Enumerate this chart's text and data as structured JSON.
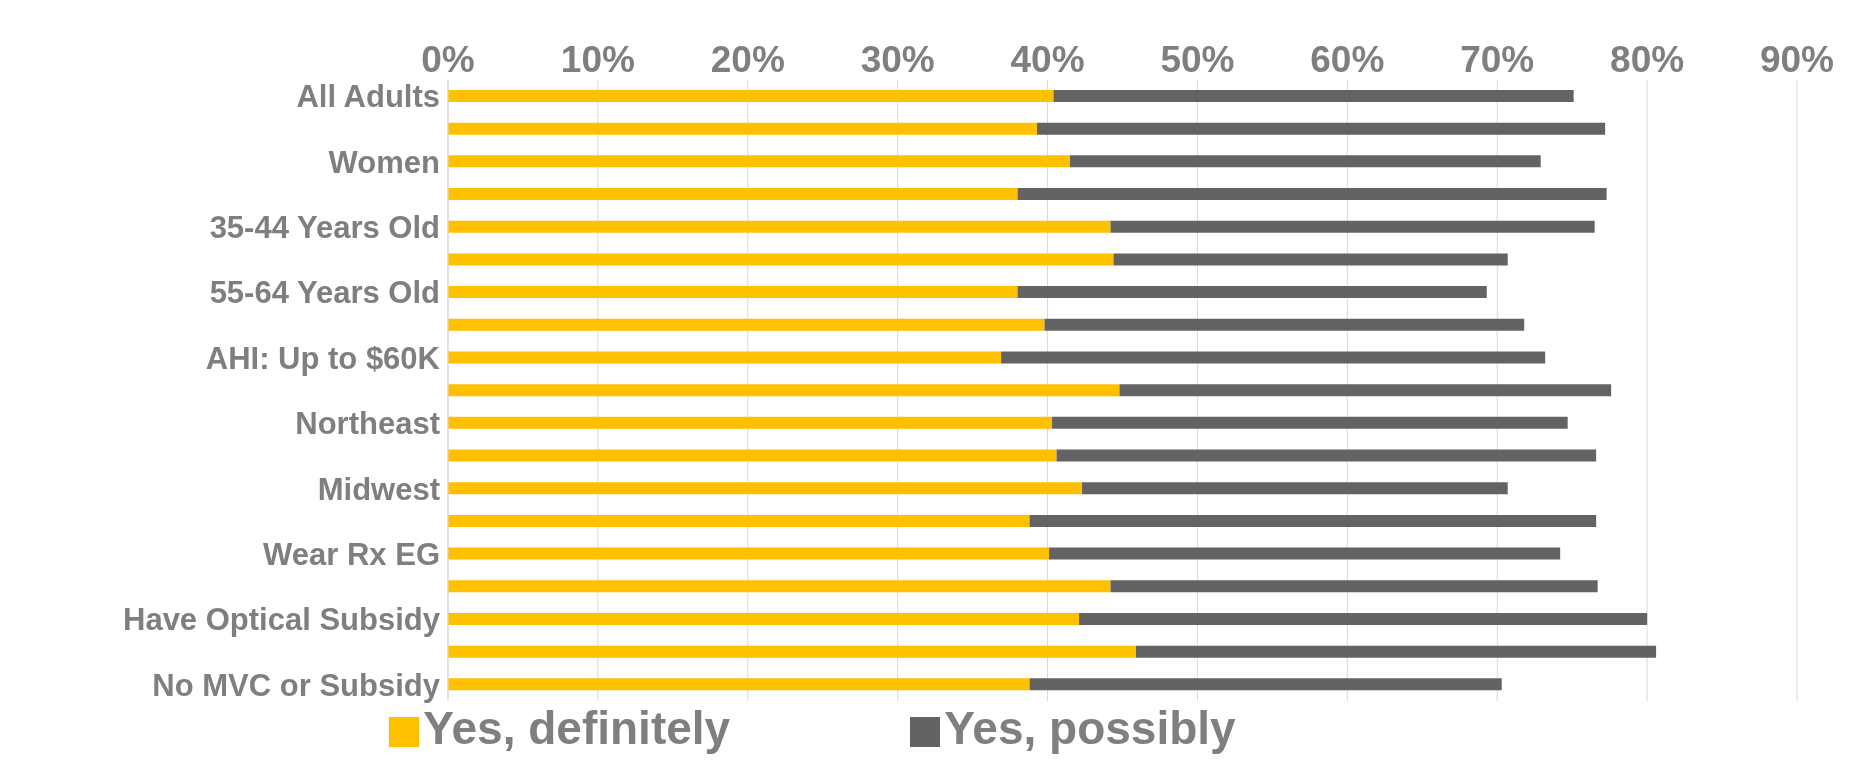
{
  "chart_data": {
    "type": "bar",
    "orientation": "horizontal",
    "stacked": true,
    "categories": [
      "All Adults",
      null,
      "Women",
      null,
      "35-44 Years Old",
      null,
      "55-64 Years Old",
      null,
      "AHI: Up to $60K ",
      null,
      "Northeast",
      null,
      "Midwest",
      null,
      "Wear Rx EG",
      null,
      "Have Optical Subsidy",
      null,
      "No MVC or Subsidy"
    ],
    "series": [
      {
        "name": "Yes, definitely",
        "color": "#ffc000",
        "values": [
          40.4,
          39.3,
          41.5,
          38.0,
          44.2,
          44.4,
          38.0,
          39.8,
          36.9,
          44.8,
          40.3,
          40.6,
          42.3,
          38.8,
          40.1,
          44.2,
          42.1,
          45.9,
          38.8
        ]
      },
      {
        "name": "Yes, possibly",
        "color": "#636363",
        "values": [
          34.7,
          37.9,
          31.4,
          39.3,
          32.3,
          26.3,
          31.3,
          32.0,
          36.3,
          32.8,
          34.4,
          36.0,
          28.4,
          37.8,
          34.1,
          32.5,
          37.9,
          34.7,
          31.5
        ]
      }
    ],
    "xlim": [
      0,
      90
    ],
    "xticks": [
      {
        "value": 0,
        "label": "0%"
      },
      {
        "value": 10,
        "label": "10%"
      },
      {
        "value": 20,
        "label": "20%"
      },
      {
        "value": 30,
        "label": "30%"
      },
      {
        "value": 40,
        "label": "40%"
      },
      {
        "value": 50,
        "label": "50%"
      },
      {
        "value": 60,
        "label": "60%"
      },
      {
        "value": 70,
        "label": "70%"
      },
      {
        "value": 80,
        "label": "80%"
      },
      {
        "value": 90,
        "label": "90%"
      }
    ],
    "grid": "x",
    "legend": "bottom"
  }
}
